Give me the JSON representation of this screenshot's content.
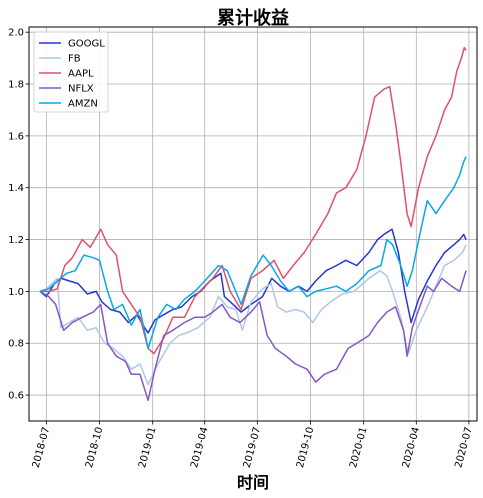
{
  "chart_data": {
    "type": "line",
    "title": "累计收益",
    "xlabel": "时间",
    "ylabel": "",
    "xlim": [
      "2018-06-01",
      "2020-07-15"
    ],
    "ylim": [
      0.5,
      2.02
    ],
    "grid": true,
    "legend_placement": "top-left",
    "yticks": [
      0.6,
      0.8,
      1.0,
      1.2,
      1.4,
      1.6,
      1.8,
      2.0
    ],
    "ytick_labels": [
      "0.6",
      "0.8",
      "1.0",
      "1.2",
      "1.4",
      "1.6",
      "1.8",
      "2.0"
    ],
    "xticks": [
      "2018-07",
      "2018-10",
      "2019-01",
      "2019-04",
      "2019-07",
      "2019-10",
      "2020-01",
      "2020-04",
      "2020-07"
    ],
    "series": [
      {
        "name": "GOOGL",
        "color": "#2437d4",
        "points": [
          [
            "2018-06-20",
            1.0
          ],
          [
            "2018-07-01",
            0.98
          ],
          [
            "2018-07-15",
            1.03
          ],
          [
            "2018-07-27",
            1.05
          ],
          [
            "2018-08-10",
            1.04
          ],
          [
            "2018-08-25",
            1.03
          ],
          [
            "2018-09-10",
            0.99
          ],
          [
            "2018-09-25",
            1.0
          ],
          [
            "2018-10-05",
            0.96
          ],
          [
            "2018-10-20",
            0.93
          ],
          [
            "2018-11-05",
            0.92
          ],
          [
            "2018-11-20",
            0.88
          ],
          [
            "2018-12-05",
            0.91
          ],
          [
            "2018-12-15",
            0.87
          ],
          [
            "2018-12-24",
            0.84
          ],
          [
            "2019-01-05",
            0.89
          ],
          [
            "2019-01-20",
            0.91
          ],
          [
            "2019-02-05",
            0.93
          ],
          [
            "2019-02-20",
            0.94
          ],
          [
            "2019-03-10",
            0.98
          ],
          [
            "2019-03-25",
            1.0
          ],
          [
            "2019-04-10",
            1.04
          ],
          [
            "2019-04-29",
            1.07
          ],
          [
            "2019-05-05",
            0.98
          ],
          [
            "2019-05-20",
            0.95
          ],
          [
            "2019-06-03",
            0.92
          ],
          [
            "2019-06-20",
            0.95
          ],
          [
            "2019-07-10",
            0.98
          ],
          [
            "2019-07-26",
            1.05
          ],
          [
            "2019-08-10",
            1.02
          ],
          [
            "2019-08-25",
            1.0
          ],
          [
            "2019-09-10",
            1.02
          ],
          [
            "2019-09-25",
            1.0
          ],
          [
            "2019-10-10",
            1.04
          ],
          [
            "2019-10-28",
            1.08
          ],
          [
            "2019-11-15",
            1.1
          ],
          [
            "2019-12-01",
            1.12
          ],
          [
            "2019-12-20",
            1.1
          ],
          [
            "2020-01-10",
            1.15
          ],
          [
            "2020-01-25",
            1.2
          ],
          [
            "2020-02-05",
            1.22
          ],
          [
            "2020-02-19",
            1.24
          ],
          [
            "2020-03-01",
            1.15
          ],
          [
            "2020-03-12",
            1.0
          ],
          [
            "2020-03-23",
            0.88
          ],
          [
            "2020-04-05",
            0.97
          ],
          [
            "2020-04-20",
            1.04
          ],
          [
            "2020-05-05",
            1.1
          ],
          [
            "2020-05-20",
            1.15
          ],
          [
            "2020-06-05",
            1.18
          ],
          [
            "2020-06-15",
            1.2
          ],
          [
            "2020-06-22",
            1.22
          ],
          [
            "2020-06-26",
            1.2
          ]
        ]
      },
      {
        "name": "FB",
        "color": "#aec7e8",
        "points": [
          [
            "2018-06-20",
            1.0
          ],
          [
            "2018-07-01",
            1.01
          ],
          [
            "2018-07-20",
            1.05
          ],
          [
            "2018-07-26",
            0.86
          ],
          [
            "2018-08-10",
            0.88
          ],
          [
            "2018-08-25",
            0.9
          ],
          [
            "2018-09-10",
            0.85
          ],
          [
            "2018-09-25",
            0.86
          ],
          [
            "2018-10-10",
            0.8
          ],
          [
            "2018-10-25",
            0.78
          ],
          [
            "2018-11-10",
            0.75
          ],
          [
            "2018-11-25",
            0.7
          ],
          [
            "2018-12-10",
            0.72
          ],
          [
            "2018-12-24",
            0.64
          ],
          [
            "2019-01-10",
            0.72
          ],
          [
            "2019-01-31",
            0.8
          ],
          [
            "2019-02-15",
            0.83
          ],
          [
            "2019-03-01",
            0.84
          ],
          [
            "2019-03-20",
            0.86
          ],
          [
            "2019-04-10",
            0.9
          ],
          [
            "2019-04-25",
            0.98
          ],
          [
            "2019-05-10",
            0.94
          ],
          [
            "2019-05-25",
            0.93
          ],
          [
            "2019-06-05",
            0.85
          ],
          [
            "2019-06-20",
            0.96
          ],
          [
            "2019-07-10",
            1.01
          ],
          [
            "2019-07-25",
            1.03
          ],
          [
            "2019-08-05",
            0.94
          ],
          [
            "2019-08-20",
            0.92
          ],
          [
            "2019-09-05",
            0.93
          ],
          [
            "2019-09-20",
            0.92
          ],
          [
            "2019-10-05",
            0.88
          ],
          [
            "2019-10-20",
            0.93
          ],
          [
            "2019-11-05",
            0.96
          ],
          [
            "2019-11-25",
            0.99
          ],
          [
            "2019-12-15",
            1.0
          ],
          [
            "2020-01-10",
            1.05
          ],
          [
            "2020-01-29",
            1.08
          ],
          [
            "2020-02-10",
            1.06
          ],
          [
            "2020-02-20",
            1.0
          ],
          [
            "2020-03-05",
            0.9
          ],
          [
            "2020-03-18",
            0.76
          ],
          [
            "2020-04-01",
            0.85
          ],
          [
            "2020-04-20",
            0.94
          ],
          [
            "2020-05-05",
            1.02
          ],
          [
            "2020-05-20",
            1.1
          ],
          [
            "2020-06-05",
            1.12
          ],
          [
            "2020-06-20",
            1.15
          ],
          [
            "2020-06-26",
            1.18
          ]
        ]
      },
      {
        "name": "AAPL",
        "color": "#e0506a",
        "points": [
          [
            "2018-06-20",
            1.0
          ],
          [
            "2018-07-05",
            1.0
          ],
          [
            "2018-07-20",
            1.01
          ],
          [
            "2018-08-02",
            1.1
          ],
          [
            "2018-08-15",
            1.13
          ],
          [
            "2018-09-01",
            1.2
          ],
          [
            "2018-09-15",
            1.17
          ],
          [
            "2018-10-03",
            1.24
          ],
          [
            "2018-10-15",
            1.18
          ],
          [
            "2018-10-30",
            1.14
          ],
          [
            "2018-11-10",
            1.0
          ],
          [
            "2018-11-25",
            0.95
          ],
          [
            "2018-12-10",
            0.9
          ],
          [
            "2018-12-24",
            0.78
          ],
          [
            "2019-01-03",
            0.76
          ],
          [
            "2019-01-20",
            0.82
          ],
          [
            "2019-02-05",
            0.9
          ],
          [
            "2019-02-25",
            0.9
          ],
          [
            "2019-03-15",
            0.98
          ],
          [
            "2019-04-01",
            1.02
          ],
          [
            "2019-04-15",
            1.05
          ],
          [
            "2019-05-01",
            1.1
          ],
          [
            "2019-05-15",
            1.0
          ],
          [
            "2019-06-03",
            0.93
          ],
          [
            "2019-06-20",
            1.05
          ],
          [
            "2019-07-10",
            1.08
          ],
          [
            "2019-07-30",
            1.12
          ],
          [
            "2019-08-15",
            1.05
          ],
          [
            "2019-09-01",
            1.1
          ],
          [
            "2019-09-20",
            1.15
          ],
          [
            "2019-10-10",
            1.22
          ],
          [
            "2019-10-31",
            1.3
          ],
          [
            "2019-11-15",
            1.38
          ],
          [
            "2019-12-01",
            1.4
          ],
          [
            "2019-12-20",
            1.47
          ],
          [
            "2020-01-05",
            1.6
          ],
          [
            "2020-01-20",
            1.75
          ],
          [
            "2020-02-05",
            1.78
          ],
          [
            "2020-02-15",
            1.79
          ],
          [
            "2020-02-25",
            1.65
          ],
          [
            "2020-03-05",
            1.5
          ],
          [
            "2020-03-16",
            1.3
          ],
          [
            "2020-03-23",
            1.25
          ],
          [
            "2020-04-05",
            1.4
          ],
          [
            "2020-04-20",
            1.52
          ],
          [
            "2020-05-05",
            1.6
          ],
          [
            "2020-05-20",
            1.7
          ],
          [
            "2020-06-01",
            1.75
          ],
          [
            "2020-06-10",
            1.85
          ],
          [
            "2020-06-18",
            1.9
          ],
          [
            "2020-06-23",
            1.94
          ],
          [
            "2020-06-26",
            1.93
          ]
        ]
      },
      {
        "name": "NFLX",
        "color": "#8458c4",
        "points": [
          [
            "2018-06-20",
            1.0
          ],
          [
            "2018-07-05",
            0.98
          ],
          [
            "2018-07-17",
            0.95
          ],
          [
            "2018-07-31",
            0.85
          ],
          [
            "2018-08-15",
            0.88
          ],
          [
            "2018-09-01",
            0.9
          ],
          [
            "2018-09-20",
            0.92
          ],
          [
            "2018-10-03",
            0.95
          ],
          [
            "2018-10-15",
            0.8
          ],
          [
            "2018-10-30",
            0.75
          ],
          [
            "2018-11-15",
            0.73
          ],
          [
            "2018-11-25",
            0.68
          ],
          [
            "2018-12-10",
            0.68
          ],
          [
            "2018-12-24",
            0.58
          ],
          [
            "2019-01-05",
            0.7
          ],
          [
            "2019-01-20",
            0.83
          ],
          [
            "2019-02-05",
            0.85
          ],
          [
            "2019-02-25",
            0.88
          ],
          [
            "2019-03-15",
            0.9
          ],
          [
            "2019-04-01",
            0.9
          ],
          [
            "2019-04-15",
            0.92
          ],
          [
            "2019-05-01",
            0.95
          ],
          [
            "2019-05-15",
            0.9
          ],
          [
            "2019-06-01",
            0.88
          ],
          [
            "2019-06-20",
            0.92
          ],
          [
            "2019-07-05",
            0.96
          ],
          [
            "2019-07-18",
            0.83
          ],
          [
            "2019-08-01",
            0.78
          ],
          [
            "2019-08-20",
            0.75
          ],
          [
            "2019-09-05",
            0.72
          ],
          [
            "2019-09-25",
            0.7
          ],
          [
            "2019-10-10",
            0.65
          ],
          [
            "2019-10-25",
            0.68
          ],
          [
            "2019-11-15",
            0.7
          ],
          [
            "2019-12-05",
            0.78
          ],
          [
            "2019-12-20",
            0.8
          ],
          [
            "2020-01-10",
            0.83
          ],
          [
            "2020-01-25",
            0.88
          ],
          [
            "2020-02-10",
            0.92
          ],
          [
            "2020-02-25",
            0.94
          ],
          [
            "2020-03-10",
            0.85
          ],
          [
            "2020-03-16",
            0.75
          ],
          [
            "2020-03-25",
            0.86
          ],
          [
            "2020-04-10",
            0.96
          ],
          [
            "2020-04-20",
            1.02
          ],
          [
            "2020-05-01",
            1.0
          ],
          [
            "2020-05-15",
            1.05
          ],
          [
            "2020-06-01",
            1.02
          ],
          [
            "2020-06-15",
            1.0
          ],
          [
            "2020-06-22",
            1.05
          ],
          [
            "2020-06-26",
            1.08
          ]
        ]
      },
      {
        "name": "AMZN",
        "color": "#0aa6e6",
        "points": [
          [
            "2018-06-20",
            1.0
          ],
          [
            "2018-07-05",
            1.01
          ],
          [
            "2018-07-20",
            1.04
          ],
          [
            "2018-08-05",
            1.07
          ],
          [
            "2018-08-20",
            1.08
          ],
          [
            "2018-09-04",
            1.14
          ],
          [
            "2018-09-20",
            1.13
          ],
          [
            "2018-10-01",
            1.12
          ],
          [
            "2018-10-15",
            1.0
          ],
          [
            "2018-10-26",
            0.93
          ],
          [
            "2018-11-10",
            0.95
          ],
          [
            "2018-11-25",
            0.87
          ],
          [
            "2018-12-10",
            0.93
          ],
          [
            "2018-12-24",
            0.78
          ],
          [
            "2019-01-10",
            0.9
          ],
          [
            "2019-01-25",
            0.95
          ],
          [
            "2019-02-10",
            0.93
          ],
          [
            "2019-02-25",
            0.97
          ],
          [
            "2019-03-15",
            1.0
          ],
          [
            "2019-04-01",
            1.04
          ],
          [
            "2019-04-25",
            1.1
          ],
          [
            "2019-05-10",
            1.08
          ],
          [
            "2019-06-03",
            0.95
          ],
          [
            "2019-06-20",
            1.06
          ],
          [
            "2019-07-11",
            1.14
          ],
          [
            "2019-07-25",
            1.1
          ],
          [
            "2019-08-10",
            1.04
          ],
          [
            "2019-08-25",
            1.0
          ],
          [
            "2019-09-10",
            1.02
          ],
          [
            "2019-09-25",
            0.98
          ],
          [
            "2019-10-10",
            1.0
          ],
          [
            "2019-10-28",
            1.01
          ],
          [
            "2019-11-15",
            1.02
          ],
          [
            "2019-12-01",
            1.0
          ],
          [
            "2019-12-20",
            1.03
          ],
          [
            "2020-01-10",
            1.08
          ],
          [
            "2020-01-31",
            1.1
          ],
          [
            "2020-02-10",
            1.2
          ],
          [
            "2020-02-20",
            1.18
          ],
          [
            "2020-03-05",
            1.1
          ],
          [
            "2020-03-16",
            1.02
          ],
          [
            "2020-03-25",
            1.08
          ],
          [
            "2020-04-10",
            1.25
          ],
          [
            "2020-04-20",
            1.35
          ],
          [
            "2020-05-05",
            1.3
          ],
          [
            "2020-05-20",
            1.35
          ],
          [
            "2020-06-05",
            1.4
          ],
          [
            "2020-06-15",
            1.45
          ],
          [
            "2020-06-22",
            1.5
          ],
          [
            "2020-06-26",
            1.52
          ]
        ]
      }
    ]
  }
}
